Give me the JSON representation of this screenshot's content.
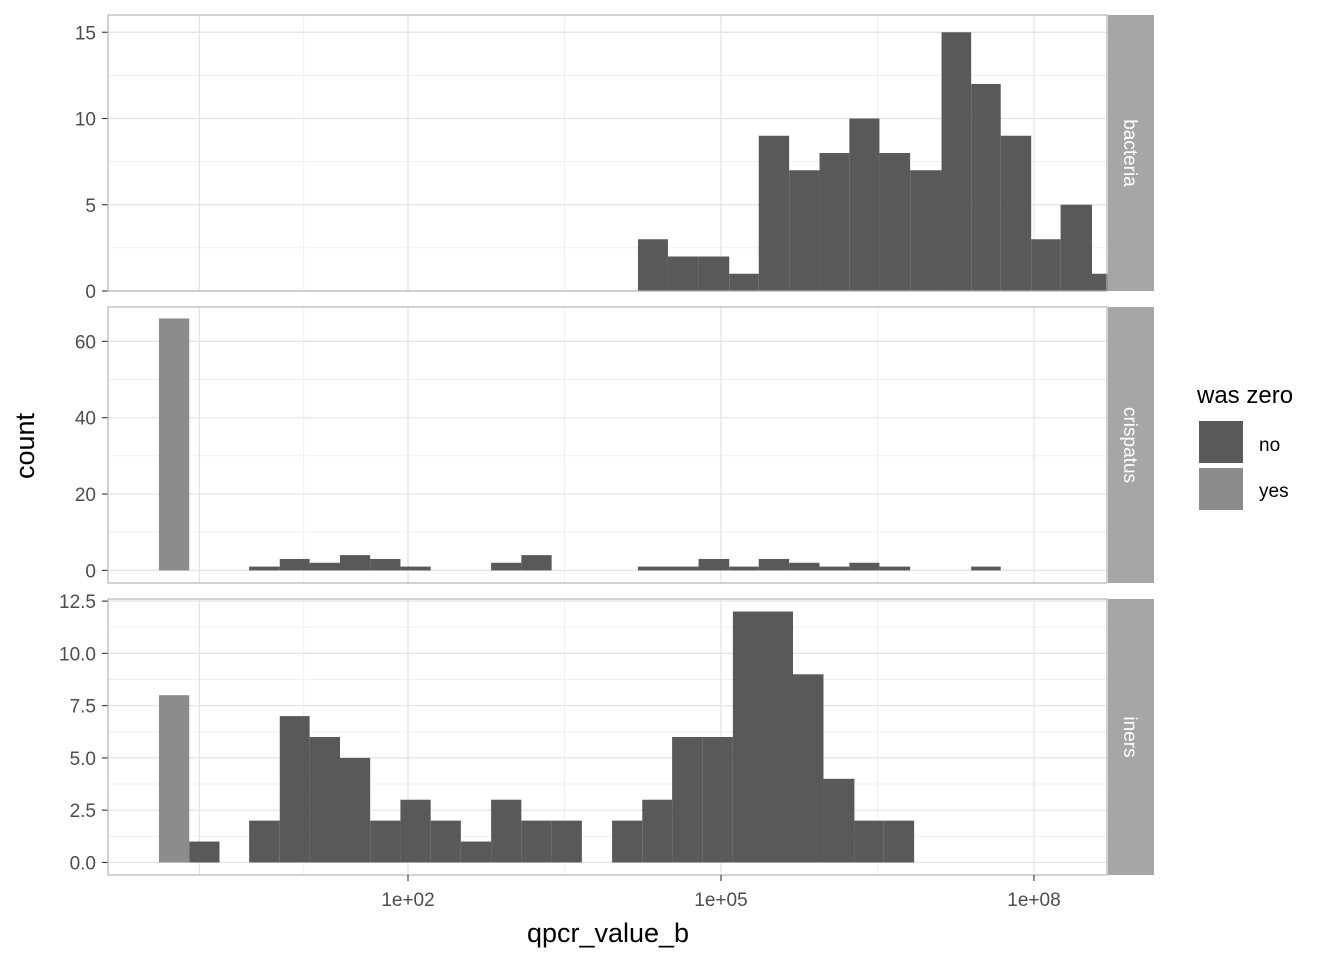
{
  "chart_data": {
    "type": "bar",
    "subtype": "faceted-histogram",
    "xlabel": "qpcr_value_b",
    "ylabel": "count",
    "x_scale": "log10",
    "x_ticks": [
      {
        "value": 100,
        "label": "1e+02"
      },
      {
        "value": 100000,
        "label": "1e+05"
      },
      {
        "value": 100000000,
        "label": "1e+08"
      }
    ],
    "bin_width_log10": 0.2902,
    "colors": {
      "no": "#595959",
      "yes": "#8c8c8c"
    },
    "legend": {
      "title": "was zero",
      "position": "right",
      "entries": [
        {
          "key": "no",
          "label": "no",
          "color": "#595959"
        },
        {
          "key": "yes",
          "label": "yes",
          "color": "#8c8c8c"
        }
      ]
    },
    "grid": true,
    "facets": [
      {
        "label": "bacteria",
        "ylim": [
          0,
          16
        ],
        "y_ticks": [
          {
            "value": 0,
            "label": "0"
          },
          {
            "value": 5,
            "label": "5"
          },
          {
            "value": 10,
            "label": "10"
          },
          {
            "value": 15,
            "label": "15"
          }
        ],
        "bars": [
          {
            "x0": 16000.0,
            "x1": 31000.0,
            "count": 3,
            "group": "no"
          },
          {
            "x0": 31000.0,
            "x1": 61000.0,
            "count": 2,
            "group": "no"
          },
          {
            "x0": 61000.0,
            "x1": 120000.0,
            "count": 2,
            "group": "no"
          },
          {
            "x0": 120000.0,
            "x1": 230000.0,
            "count": 1,
            "group": "no"
          },
          {
            "x0": 230000.0,
            "x1": 450000.0,
            "count": 9,
            "group": "no"
          },
          {
            "x0": 450000.0,
            "x1": 880000.0,
            "count": 7,
            "group": "no"
          },
          {
            "x0": 880000.0,
            "x1": 1700000.0,
            "count": 8,
            "group": "no"
          },
          {
            "x0": 1700000.0,
            "x1": 3300000.0,
            "count": 10,
            "group": "no"
          },
          {
            "x0": 3300000.0,
            "x1": 6500000.0,
            "count": 8,
            "group": "no"
          },
          {
            "x0": 6500000.0,
            "x1": 13000000.0,
            "count": 7,
            "group": "no"
          },
          {
            "x0": 13000000.0,
            "x1": 25000000.0,
            "count": 15,
            "group": "no"
          },
          {
            "x0": 25000000.0,
            "x1": 48000000.0,
            "count": 12,
            "group": "no"
          },
          {
            "x0": 48000000.0,
            "x1": 94000000.0,
            "count": 9,
            "group": "no"
          },
          {
            "x0": 94000000.0,
            "x1": 180000000.0,
            "count": 3,
            "group": "no"
          },
          {
            "x0": 180000000.0,
            "x1": 360000000.0,
            "count": 5,
            "group": "no"
          },
          {
            "x0": 360000000.0,
            "x1": 700000000.0,
            "count": 1,
            "group": "no"
          }
        ]
      },
      {
        "label": "crispatus",
        "ylim": [
          -3.3,
          69
        ],
        "y_ticks": [
          {
            "value": 0,
            "label": "0"
          },
          {
            "value": 20,
            "label": "20"
          },
          {
            "value": 40,
            "label": "40"
          },
          {
            "value": 60,
            "label": "60"
          }
        ],
        "bars": [
          {
            "x0": 0.41,
            "x1": 0.8,
            "count": 66,
            "group": "yes"
          },
          {
            "x0": 3.0,
            "x1": 5.9,
            "count": 1,
            "group": "no"
          },
          {
            "x0": 5.9,
            "x1": 11.4,
            "count": 3,
            "group": "no"
          },
          {
            "x0": 11.4,
            "x1": 22.3,
            "count": 2,
            "group": "no"
          },
          {
            "x0": 22.3,
            "x1": 43.4,
            "count": 4,
            "group": "no"
          },
          {
            "x0": 43.4,
            "x1": 84.6,
            "count": 3,
            "group": "no"
          },
          {
            "x0": 84.6,
            "x1": 165,
            "count": 1,
            "group": "no"
          },
          {
            "x0": 626,
            "x1": 1220,
            "count": 2,
            "group": "no"
          },
          {
            "x0": 1220,
            "x1": 2380,
            "count": 4,
            "group": "no"
          },
          {
            "x0": 16000.0,
            "x1": 31000.0,
            "count": 1,
            "group": "no"
          },
          {
            "x0": 31000.0,
            "x1": 61000.0,
            "count": 1,
            "group": "no"
          },
          {
            "x0": 61000.0,
            "x1": 120000.0,
            "count": 3,
            "group": "no"
          },
          {
            "x0": 120000.0,
            "x1": 230000.0,
            "count": 1,
            "group": "no"
          },
          {
            "x0": 230000.0,
            "x1": 450000.0,
            "count": 3,
            "group": "no"
          },
          {
            "x0": 450000.0,
            "x1": 880000.0,
            "count": 2,
            "group": "no"
          },
          {
            "x0": 880000.0,
            "x1": 1700000.0,
            "count": 1,
            "group": "no"
          },
          {
            "x0": 1700000.0,
            "x1": 3300000.0,
            "count": 2,
            "group": "no"
          },
          {
            "x0": 3300000.0,
            "x1": 6500000.0,
            "count": 1,
            "group": "no"
          },
          {
            "x0": 25000000.0,
            "x1": 48000000.0,
            "count": 1,
            "group": "no"
          }
        ]
      },
      {
        "label": "iners",
        "ylim": [
          -0.6,
          12.6
        ],
        "y_ticks": [
          {
            "value": 0,
            "label": "0.0"
          },
          {
            "value": 2.5,
            "label": "2.5"
          },
          {
            "value": 5,
            "label": "5.0"
          },
          {
            "value": 7.5,
            "label": "7.5"
          },
          {
            "value": 10,
            "label": "10.0"
          },
          {
            "value": 12.5,
            "label": "12.5"
          }
        ],
        "bars": [
          {
            "x0": 0.41,
            "x1": 0.8,
            "count": 8,
            "group": "yes"
          },
          {
            "x0": 0.8,
            "x1": 1.56,
            "count": 1,
            "group": "no"
          },
          {
            "x0": 3.0,
            "x1": 5.9,
            "count": 2,
            "group": "no"
          },
          {
            "x0": 5.9,
            "x1": 11.4,
            "count": 7,
            "group": "no"
          },
          {
            "x0": 11.4,
            "x1": 22.3,
            "count": 6,
            "group": "no"
          },
          {
            "x0": 22.3,
            "x1": 43.4,
            "count": 5,
            "group": "no"
          },
          {
            "x0": 43.4,
            "x1": 84.6,
            "count": 2,
            "group": "no"
          },
          {
            "x0": 84.6,
            "x1": 165,
            "count": 3,
            "group": "no"
          },
          {
            "x0": 165,
            "x1": 321,
            "count": 2,
            "group": "no"
          },
          {
            "x0": 321,
            "x1": 626,
            "count": 1,
            "group": "no"
          },
          {
            "x0": 626,
            "x1": 1220,
            "count": 3,
            "group": "no"
          },
          {
            "x0": 1220,
            "x1": 2380,
            "count": 2,
            "group": "no"
          },
          {
            "x0": 2380,
            "x1": 4640,
            "count": 2,
            "group": "no"
          },
          {
            "x0": 9040,
            "x1": 17600.0,
            "count": 2,
            "group": "no"
          },
          {
            "x0": 17600.0,
            "x1": 34000.0,
            "count": 3,
            "group": "no"
          },
          {
            "x0": 34000.0,
            "x1": 66000.0,
            "count": 6,
            "group": "no"
          },
          {
            "x0": 66000.0,
            "x1": 130000.0,
            "count": 6,
            "group": "no"
          },
          {
            "x0": 130000.0,
            "x1": 250000.0,
            "count": 12,
            "group": "no"
          },
          {
            "x0": 250000.0,
            "x1": 490000.0,
            "count": 12,
            "group": "no"
          },
          {
            "x0": 490000.0,
            "x1": 960000.0,
            "count": 9,
            "group": "no"
          },
          {
            "x0": 960000.0,
            "x1": 1900000.0,
            "count": 4,
            "group": "no"
          },
          {
            "x0": 1900000.0,
            "x1": 3600000.0,
            "count": 2,
            "group": "no"
          },
          {
            "x0": 3600000.0,
            "x1": 7100000.0,
            "count": 2,
            "group": "no"
          }
        ]
      }
    ]
  }
}
